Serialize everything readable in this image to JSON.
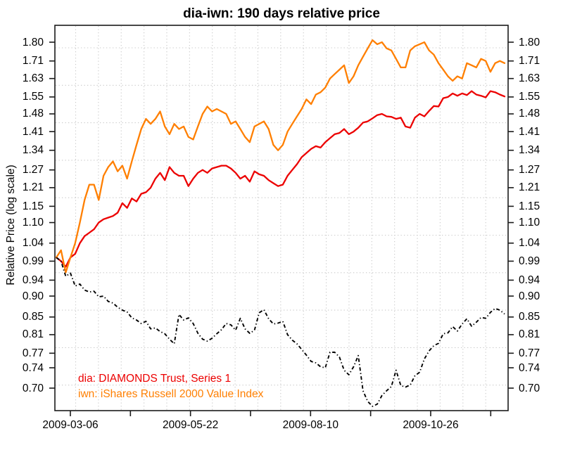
{
  "title": "dia-iwn: 190 days relative price",
  "y_axis_label": "Relative Price (log scale)",
  "axis": {
    "y_tick_labels": [
      "1.80",
      "1.71",
      "1.63",
      "1.55",
      "1.48",
      "1.41",
      "1.34",
      "1.27",
      "1.21",
      "1.15",
      "1.10",
      "1.04",
      "0.99",
      "0.94",
      "0.90",
      "0.85",
      "0.81",
      "0.77",
      "0.74",
      "0.70"
    ],
    "x_tick_labels": [
      "2009-03-06",
      "2009-05-22",
      "2009-08-10",
      "2009-10-26"
    ]
  },
  "legend": {
    "dia": "dia: DIAMONDS Trust, Series 1",
    "iwn": "iwn: iShares Russell 2000 Value Index"
  },
  "colors": {
    "dia": "#ec0000",
    "iwn": "#ff7f00",
    "ratio": "#000000",
    "grid": "#c8c8c8",
    "axis": "#1a1a1a"
  },
  "chart_data": {
    "type": "line",
    "title": "dia-iwn: 190 days relative price",
    "ylabel": "Relative Price (log scale)",
    "yscale": "log",
    "ylim": [
      0.66,
      1.88
    ],
    "grid": true,
    "n_days": 190,
    "x_tick_dates": [
      "2009-03-06",
      "2009-05-22",
      "2009-08-10",
      "2009-10-26"
    ],
    "y_ticks": [
      1.8,
      1.71,
      1.63,
      1.55,
      1.48,
      1.41,
      1.34,
      1.27,
      1.21,
      1.15,
      1.1,
      1.04,
      0.99,
      0.94,
      0.9,
      0.85,
      0.81,
      0.77,
      0.74,
      0.7
    ],
    "series": [
      {
        "name": "dia: DIAMONDS Trust, Series 1",
        "color_key": "dia",
        "style": "solid",
        "values": [
          1.0,
          0.99,
          0.975,
          1.0,
          1.01,
          1.04,
          1.06,
          1.07,
          1.08,
          1.1,
          1.11,
          1.115,
          1.12,
          1.13,
          1.16,
          1.145,
          1.175,
          1.165,
          1.19,
          1.195,
          1.21,
          1.24,
          1.26,
          1.235,
          1.28,
          1.26,
          1.25,
          1.25,
          1.215,
          1.24,
          1.26,
          1.27,
          1.26,
          1.275,
          1.28,
          1.285,
          1.285,
          1.275,
          1.26,
          1.24,
          1.25,
          1.23,
          1.265,
          1.255,
          1.25,
          1.235,
          1.225,
          1.215,
          1.22,
          1.25,
          1.27,
          1.29,
          1.315,
          1.33,
          1.345,
          1.355,
          1.35,
          1.37,
          1.385,
          1.4,
          1.405,
          1.42,
          1.4,
          1.41,
          1.425,
          1.445,
          1.45,
          1.462,
          1.475,
          1.48,
          1.47,
          1.468,
          1.46,
          1.465,
          1.43,
          1.425,
          1.465,
          1.48,
          1.47,
          1.492,
          1.512,
          1.51,
          1.545,
          1.55,
          1.565,
          1.555,
          1.565,
          1.558,
          1.575,
          1.56,
          1.555,
          1.548,
          1.575,
          1.57,
          1.56,
          1.552
        ]
      },
      {
        "name": "iwn: iShares Russell 2000 Value Index",
        "color_key": "iwn",
        "style": "solid",
        "values": [
          1.0,
          1.02,
          0.96,
          1.0,
          1.04,
          1.1,
          1.17,
          1.22,
          1.22,
          1.17,
          1.25,
          1.28,
          1.3,
          1.265,
          1.285,
          1.24,
          1.3,
          1.36,
          1.42,
          1.46,
          1.44,
          1.46,
          1.49,
          1.43,
          1.4,
          1.44,
          1.42,
          1.43,
          1.39,
          1.38,
          1.43,
          1.48,
          1.51,
          1.49,
          1.5,
          1.49,
          1.48,
          1.44,
          1.45,
          1.42,
          1.39,
          1.37,
          1.43,
          1.44,
          1.45,
          1.42,
          1.36,
          1.34,
          1.36,
          1.41,
          1.44,
          1.47,
          1.5,
          1.54,
          1.52,
          1.56,
          1.57,
          1.59,
          1.63,
          1.65,
          1.67,
          1.69,
          1.61,
          1.64,
          1.69,
          1.73,
          1.77,
          1.81,
          1.79,
          1.8,
          1.77,
          1.76,
          1.72,
          1.68,
          1.68,
          1.76,
          1.78,
          1.79,
          1.8,
          1.76,
          1.74,
          1.7,
          1.67,
          1.64,
          1.62,
          1.64,
          1.63,
          1.7,
          1.69,
          1.68,
          1.72,
          1.71,
          1.66,
          1.7,
          1.71,
          1.7
        ]
      },
      {
        "name": "dia/iwn relative (black dash-dot)",
        "color_key": "ratio",
        "style": "dashdot",
        "values": [
          1.0,
          0.99,
          0.95,
          0.958,
          0.925,
          0.93,
          0.915,
          0.91,
          0.912,
          0.898,
          0.9,
          0.887,
          0.883,
          0.873,
          0.866,
          0.862,
          0.848,
          0.843,
          0.835,
          0.84,
          0.823,
          0.825,
          0.817,
          0.812,
          0.8,
          0.79,
          0.856,
          0.843,
          0.848,
          0.835,
          0.813,
          0.8,
          0.796,
          0.802,
          0.812,
          0.821,
          0.835,
          0.832,
          0.82,
          0.847,
          0.823,
          0.813,
          0.82,
          0.86,
          0.867,
          0.846,
          0.834,
          0.836,
          0.84,
          0.81,
          0.798,
          0.79,
          0.778,
          0.766,
          0.753,
          0.75,
          0.742,
          0.74,
          0.772,
          0.772,
          0.762,
          0.735,
          0.726,
          0.742,
          0.765,
          0.695,
          0.675,
          0.666,
          0.67,
          0.686,
          0.695,
          0.703,
          0.735,
          0.705,
          0.702,
          0.706,
          0.724,
          0.731,
          0.758,
          0.775,
          0.786,
          0.791,
          0.812,
          0.814,
          0.828,
          0.818,
          0.834,
          0.846,
          0.829,
          0.838,
          0.849,
          0.847,
          0.861,
          0.87,
          0.866,
          0.857
        ]
      }
    ],
    "legend_position": "bottom-left"
  }
}
